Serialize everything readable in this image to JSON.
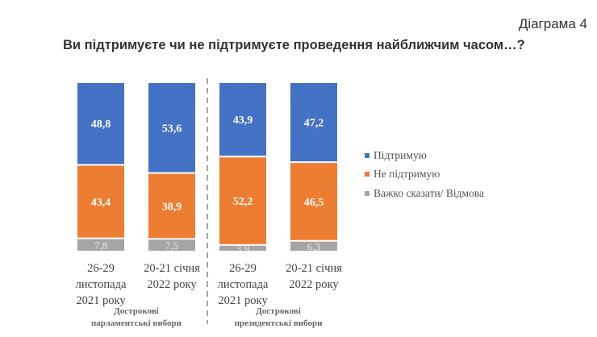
{
  "header": {
    "diagram_label": "Діаграма 4",
    "title": "Ви підтримуєте чи не підтримуєте проведення найближчим часом…?"
  },
  "chart_data": {
    "type": "bar",
    "stacked": true,
    "title": "Ви підтримуєте чи не підтримуєте проведення найближчим часом…?",
    "categories": [
      "26-29 листопада 2021 року",
      "20-21 січня 2022 року",
      "26-29 листопада 2021 року",
      "20-21 січня 2022 року"
    ],
    "category_lines": [
      [
        "26-29",
        "листопада",
        "2021 року"
      ],
      [
        "20-21 січня",
        "2022 року"
      ],
      [
        "26-29",
        "листопада",
        "2021 року"
      ],
      [
        "20-21 січня",
        "2022 року"
      ]
    ],
    "groups": [
      {
        "lines": [
          "Дострокові",
          "парламентські вибори"
        ]
      },
      {
        "lines": [
          "Дострокові",
          "президентські вибори"
        ]
      }
    ],
    "series": [
      {
        "name": "Підтримую",
        "color": "#4472C4",
        "values": [
          48.8,
          53.6,
          43.9,
          47.2
        ],
        "labels": [
          "48,8",
          "53,6",
          "43,9",
          "47,2"
        ]
      },
      {
        "name": "Не підтримую",
        "color": "#ED7D31",
        "values": [
          43.4,
          38.9,
          52.2,
          46.5
        ],
        "labels": [
          "43,4",
          "38,9",
          "52,2",
          "46,5"
        ]
      },
      {
        "name": "Важко сказати/ Відмова",
        "color": "#A5A5A5",
        "values": [
          7.8,
          7.5,
          3.9,
          6.3
        ],
        "labels": [
          "7,8",
          "7,5",
          "3,9",
          "6,3"
        ]
      }
    ],
    "legend_position": "right",
    "grid": false
  }
}
